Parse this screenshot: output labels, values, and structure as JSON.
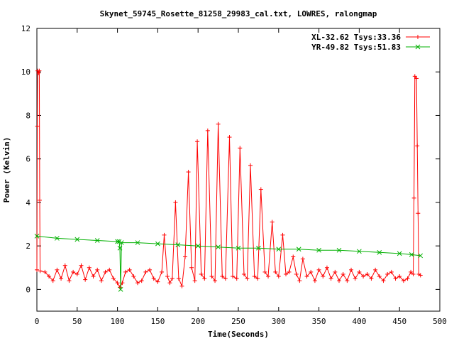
{
  "chart_data": {
    "type": "line",
    "title": "Skynet_59745_Rosette_81258_29983_cal.txt, LOWRES, ralongmap",
    "xlabel": "Time(Seconds)",
    "ylabel": "Power (Kelvin)",
    "xlim": [
      0,
      500
    ],
    "ylim": [
      -1,
      12
    ],
    "xticks": [
      0,
      50,
      100,
      150,
      200,
      250,
      300,
      350,
      400,
      450,
      500
    ],
    "yticks": [
      0,
      2,
      4,
      6,
      8,
      10,
      12
    ],
    "grid": false,
    "legend_position": "top-right",
    "series": [
      {
        "name": "XL-32.62 Tsys:33.36",
        "color": "#ff0000",
        "marker": "plus",
        "points": [
          [
            0,
            0.9
          ],
          [
            0.5,
            7.5
          ],
          [
            1,
            10.05
          ],
          [
            2,
            9.95
          ],
          [
            3,
            10.05
          ],
          [
            3.5,
            4.1
          ],
          [
            4,
            0.85
          ],
          [
            10,
            0.8
          ],
          [
            15,
            0.6
          ],
          [
            20,
            0.4
          ],
          [
            25,
            0.9
          ],
          [
            30,
            0.5
          ],
          [
            35,
            1.1
          ],
          [
            40,
            0.4
          ],
          [
            45,
            0.8
          ],
          [
            50,
            0.7
          ],
          [
            55,
            1.1
          ],
          [
            60,
            0.45
          ],
          [
            65,
            1.0
          ],
          [
            70,
            0.6
          ],
          [
            75,
            0.9
          ],
          [
            80,
            0.4
          ],
          [
            85,
            0.8
          ],
          [
            90,
            0.9
          ],
          [
            95,
            0.5
          ],
          [
            100,
            0.3
          ],
          [
            103,
            0.1
          ],
          [
            106,
            0.3
          ],
          [
            110,
            0.8
          ],
          [
            115,
            0.9
          ],
          [
            120,
            0.6
          ],
          [
            125,
            0.3
          ],
          [
            130,
            0.4
          ],
          [
            135,
            0.8
          ],
          [
            140,
            0.9
          ],
          [
            145,
            0.5
          ],
          [
            150,
            0.35
          ],
          [
            155,
            0.8
          ],
          [
            158,
            2.5
          ],
          [
            162,
            0.6
          ],
          [
            165,
            0.3
          ],
          [
            168,
            0.5
          ],
          [
            172,
            4.0
          ],
          [
            176,
            0.5
          ],
          [
            180,
            0.15
          ],
          [
            184,
            1.5
          ],
          [
            188,
            5.4
          ],
          [
            192,
            1.0
          ],
          [
            196,
            0.4
          ],
          [
            199,
            6.8
          ],
          [
            204,
            0.7
          ],
          [
            208,
            0.5
          ],
          [
            212,
            7.3
          ],
          [
            217,
            0.6
          ],
          [
            221,
            0.4
          ],
          [
            225,
            7.6
          ],
          [
            230,
            0.6
          ],
          [
            234,
            0.5
          ],
          [
            239,
            7.0
          ],
          [
            243,
            0.6
          ],
          [
            248,
            0.5
          ],
          [
            252,
            6.5
          ],
          [
            257,
            0.7
          ],
          [
            261,
            0.5
          ],
          [
            265,
            5.7
          ],
          [
            270,
            0.6
          ],
          [
            274,
            0.5
          ],
          [
            278,
            4.6
          ],
          [
            283,
            0.8
          ],
          [
            287,
            0.6
          ],
          [
            292,
            3.1
          ],
          [
            296,
            0.8
          ],
          [
            300,
            0.6
          ],
          [
            305,
            2.5
          ],
          [
            309,
            0.7
          ],
          [
            313,
            0.8
          ],
          [
            318,
            1.5
          ],
          [
            322,
            0.7
          ],
          [
            326,
            0.4
          ],
          [
            330,
            1.4
          ],
          [
            335,
            0.6
          ],
          [
            340,
            0.8
          ],
          [
            345,
            0.4
          ],
          [
            350,
            0.9
          ],
          [
            355,
            0.6
          ],
          [
            360,
            1.0
          ],
          [
            365,
            0.5
          ],
          [
            370,
            0.8
          ],
          [
            375,
            0.4
          ],
          [
            380,
            0.7
          ],
          [
            385,
            0.4
          ],
          [
            390,
            0.9
          ],
          [
            395,
            0.5
          ],
          [
            400,
            0.8
          ],
          [
            405,
            0.6
          ],
          [
            410,
            0.7
          ],
          [
            415,
            0.5
          ],
          [
            420,
            0.9
          ],
          [
            425,
            0.6
          ],
          [
            430,
            0.4
          ],
          [
            435,
            0.7
          ],
          [
            440,
            0.8
          ],
          [
            445,
            0.5
          ],
          [
            450,
            0.6
          ],
          [
            455,
            0.4
          ],
          [
            460,
            0.5
          ],
          [
            464,
            0.8
          ],
          [
            467,
            0.7
          ],
          [
            468,
            4.2
          ],
          [
            469,
            9.8
          ],
          [
            471,
            9.7
          ],
          [
            472,
            6.6
          ],
          [
            473,
            3.5
          ],
          [
            474,
            0.7
          ],
          [
            476,
            0.65
          ]
        ]
      },
      {
        "name": "YR-49.82 Tsys:51.83",
        "color": "#00b000",
        "marker": "cross",
        "points": [
          [
            0,
            2.45
          ],
          [
            25,
            2.35
          ],
          [
            50,
            2.3
          ],
          [
            75,
            2.25
          ],
          [
            100,
            2.2
          ],
          [
            102,
            2.2
          ],
          [
            103,
            1.9
          ],
          [
            104,
            0.0
          ],
          [
            105,
            2.15
          ],
          [
            125,
            2.15
          ],
          [
            150,
            2.1
          ],
          [
            175,
            2.05
          ],
          [
            200,
            2.0
          ],
          [
            225,
            1.95
          ],
          [
            250,
            1.9
          ],
          [
            275,
            1.9
          ],
          [
            300,
            1.85
          ],
          [
            325,
            1.85
          ],
          [
            350,
            1.8
          ],
          [
            375,
            1.8
          ],
          [
            400,
            1.75
          ],
          [
            425,
            1.7
          ],
          [
            450,
            1.65
          ],
          [
            465,
            1.6
          ],
          [
            476,
            1.55
          ]
        ]
      }
    ]
  }
}
